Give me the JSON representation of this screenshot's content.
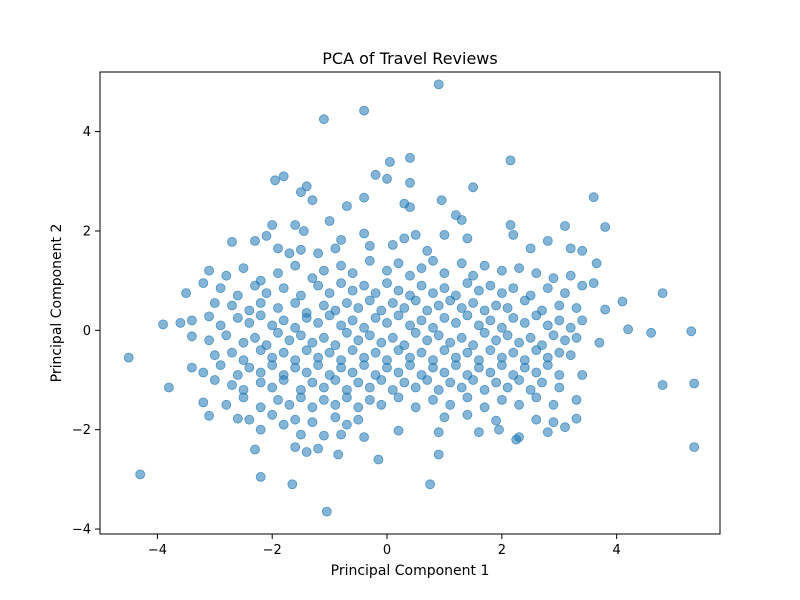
{
  "chart_data": {
    "type": "scatter",
    "title": "PCA of Travel Reviews",
    "xlabel": "Principal Component 1",
    "ylabel": "Principal Component 2",
    "xlim": [
      -5.0,
      5.8
    ],
    "ylim": [
      -4.1,
      5.2
    ],
    "xticks": [
      -4,
      -2,
      0,
      2,
      4
    ],
    "yticks": [
      -4,
      -2,
      0,
      2,
      4
    ],
    "grid": false,
    "legend": "none",
    "point_color": "#1f77b4",
    "point_alpha": 0.55,
    "points": [
      [
        0.9,
        4.95
      ],
      [
        -1.1,
        4.25
      ],
      [
        -0.4,
        4.42
      ],
      [
        0.4,
        3.47
      ],
      [
        2.15,
        3.42
      ],
      [
        0.05,
        3.39
      ],
      [
        -0.2,
        3.13
      ],
      [
        -1.8,
        3.1
      ],
      [
        -1.95,
        3.02
      ],
      [
        0.0,
        3.05
      ],
      [
        0.4,
        2.97
      ],
      [
        1.5,
        2.88
      ],
      [
        -1.4,
        2.9
      ],
      [
        -1.5,
        2.78
      ],
      [
        -1.3,
        2.62
      ],
      [
        0.95,
        2.62
      ],
      [
        3.6,
        2.68
      ],
      [
        -0.4,
        2.67
      ],
      [
        -0.7,
        2.5
      ],
      [
        0.3,
        2.55
      ],
      [
        0.4,
        2.48
      ],
      [
        1.2,
        2.32
      ],
      [
        -1.0,
        2.2
      ],
      [
        -1.6,
        2.12
      ],
      [
        -2.0,
        2.12
      ],
      [
        -1.45,
        2.0
      ],
      [
        1.3,
        2.22
      ],
      [
        2.15,
        2.12
      ],
      [
        3.1,
        2.1
      ],
      [
        3.8,
        2.08
      ],
      [
        -2.3,
        1.8
      ],
      [
        -2.7,
        1.78
      ],
      [
        -2.1,
        1.9
      ],
      [
        -1.9,
        1.65
      ],
      [
        -1.7,
        1.55
      ],
      [
        -1.5,
        1.62
      ],
      [
        -1.2,
        1.55
      ],
      [
        -0.9,
        1.65
      ],
      [
        -0.8,
        1.82
      ],
      [
        -0.4,
        1.95
      ],
      [
        -0.3,
        1.7
      ],
      [
        0.1,
        1.72
      ],
      [
        0.3,
        1.85
      ],
      [
        0.5,
        1.92
      ],
      [
        0.7,
        1.6
      ],
      [
        1.0,
        1.92
      ],
      [
        1.4,
        1.85
      ],
      [
        2.2,
        1.92
      ],
      [
        2.5,
        1.65
      ],
      [
        2.8,
        1.8
      ],
      [
        3.2,
        1.65
      ],
      [
        3.4,
        1.6
      ],
      [
        3.65,
        1.35
      ],
      [
        -3.1,
        1.2
      ],
      [
        -2.8,
        1.1
      ],
      [
        -2.5,
        1.25
      ],
      [
        -2.2,
        1.0
      ],
      [
        -1.9,
        1.15
      ],
      [
        -1.6,
        1.3
      ],
      [
        -1.3,
        1.05
      ],
      [
        -1.1,
        1.2
      ],
      [
        -0.8,
        1.3
      ],
      [
        -0.6,
        1.15
      ],
      [
        -0.3,
        1.4
      ],
      [
        0.0,
        1.2
      ],
      [
        0.2,
        1.35
      ],
      [
        0.4,
        1.1
      ],
      [
        0.6,
        1.25
      ],
      [
        0.8,
        1.4
      ],
      [
        1.0,
        1.15
      ],
      [
        1.3,
        1.35
      ],
      [
        1.5,
        1.1
      ],
      [
        1.7,
        1.3
      ],
      [
        2.0,
        1.2
      ],
      [
        2.3,
        1.25
      ],
      [
        2.6,
        1.15
      ],
      [
        2.9,
        1.05
      ],
      [
        3.2,
        1.1
      ],
      [
        -3.5,
        0.75
      ],
      [
        -3.2,
        0.95
      ],
      [
        -2.9,
        0.85
      ],
      [
        -2.6,
        0.7
      ],
      [
        -2.3,
        0.9
      ],
      [
        -2.1,
        0.75
      ],
      [
        -1.8,
        0.85
      ],
      [
        -1.5,
        0.7
      ],
      [
        -1.2,
        0.9
      ],
      [
        -1.0,
        0.75
      ],
      [
        -0.8,
        0.95
      ],
      [
        -0.6,
        0.8
      ],
      [
        -0.4,
        0.9
      ],
      [
        -0.2,
        0.75
      ],
      [
        0.0,
        0.95
      ],
      [
        0.2,
        0.8
      ],
      [
        0.4,
        0.7
      ],
      [
        0.6,
        0.9
      ],
      [
        0.8,
        0.75
      ],
      [
        1.0,
        0.85
      ],
      [
        1.2,
        0.7
      ],
      [
        1.4,
        0.95
      ],
      [
        1.6,
        0.8
      ],
      [
        1.8,
        0.9
      ],
      [
        2.0,
        0.75
      ],
      [
        2.2,
        0.85
      ],
      [
        2.5,
        0.7
      ],
      [
        2.8,
        0.85
      ],
      [
        3.1,
        0.75
      ],
      [
        3.4,
        0.9
      ],
      [
        3.6,
        0.95
      ],
      [
        4.8,
        0.75
      ],
      [
        -3.0,
        0.55
      ],
      [
        -2.7,
        0.5
      ],
      [
        -2.4,
        0.4
      ],
      [
        -2.2,
        0.55
      ],
      [
        -1.9,
        0.45
      ],
      [
        -1.6,
        0.55
      ],
      [
        -1.4,
        0.35
      ],
      [
        -1.1,
        0.5
      ],
      [
        -0.9,
        0.4
      ],
      [
        -0.7,
        0.55
      ],
      [
        -0.5,
        0.45
      ],
      [
        -0.3,
        0.6
      ],
      [
        -0.1,
        0.4
      ],
      [
        0.1,
        0.55
      ],
      [
        0.3,
        0.45
      ],
      [
        0.5,
        0.6
      ],
      [
        0.7,
        0.4
      ],
      [
        0.9,
        0.5
      ],
      [
        1.1,
        0.6
      ],
      [
        1.3,
        0.45
      ],
      [
        1.5,
        0.55
      ],
      [
        1.7,
        0.4
      ],
      [
        1.9,
        0.5
      ],
      [
        2.1,
        0.45
      ],
      [
        2.4,
        0.6
      ],
      [
        2.7,
        0.4
      ],
      [
        3.0,
        0.5
      ],
      [
        3.3,
        0.45
      ],
      [
        4.1,
        0.58
      ],
      [
        3.8,
        0.42
      ],
      [
        -3.9,
        0.12
      ],
      [
        -3.6,
        0.15
      ],
      [
        -3.4,
        0.2
      ],
      [
        -3.1,
        0.28
      ],
      [
        -2.9,
        0.1
      ],
      [
        -2.6,
        0.25
      ],
      [
        -2.4,
        0.15
      ],
      [
        -2.2,
        0.3
      ],
      [
        -2.0,
        0.1
      ],
      [
        -1.8,
        0.2
      ],
      [
        -1.6,
        0.05
      ],
      [
        -1.4,
        0.25
      ],
      [
        -1.2,
        0.15
      ],
      [
        -1.0,
        0.3
      ],
      [
        -0.8,
        0.1
      ],
      [
        -0.6,
        0.2
      ],
      [
        -0.4,
        0.05
      ],
      [
        -0.2,
        0.25
      ],
      [
        0.0,
        0.15
      ],
      [
        0.2,
        0.3
      ],
      [
        0.4,
        0.1
      ],
      [
        0.6,
        0.2
      ],
      [
        0.8,
        0.05
      ],
      [
        1.0,
        0.25
      ],
      [
        1.2,
        0.15
      ],
      [
        1.4,
        0.3
      ],
      [
        1.6,
        0.1
      ],
      [
        1.8,
        0.2
      ],
      [
        2.0,
        0.05
      ],
      [
        2.2,
        0.25
      ],
      [
        2.4,
        0.15
      ],
      [
        2.6,
        0.3
      ],
      [
        2.8,
        0.1
      ],
      [
        3.0,
        0.2
      ],
      [
        3.2,
        0.05
      ],
      [
        3.4,
        0.2
      ],
      [
        4.2,
        0.02
      ],
      [
        4.6,
        -0.05
      ],
      [
        5.3,
        -0.02
      ],
      [
        -3.4,
        -0.12
      ],
      [
        -3.1,
        -0.2
      ],
      [
        -2.8,
        -0.1
      ],
      [
        -2.5,
        -0.25
      ],
      [
        -2.3,
        -0.15
      ],
      [
        -2.1,
        -0.3
      ],
      [
        -1.9,
        -0.05
      ],
      [
        -1.7,
        -0.2
      ],
      [
        -1.5,
        -0.1
      ],
      [
        -1.3,
        -0.25
      ],
      [
        -1.1,
        -0.15
      ],
      [
        -0.9,
        -0.3
      ],
      [
        -0.7,
        -0.05
      ],
      [
        -0.5,
        -0.2
      ],
      [
        -0.3,
        -0.1
      ],
      [
        -0.1,
        -0.25
      ],
      [
        0.1,
        -0.15
      ],
      [
        0.3,
        -0.3
      ],
      [
        0.5,
        -0.05
      ],
      [
        0.7,
        -0.2
      ],
      [
        0.9,
        -0.1
      ],
      [
        1.1,
        -0.25
      ],
      [
        1.3,
        -0.15
      ],
      [
        1.5,
        -0.3
      ],
      [
        1.7,
        -0.05
      ],
      [
        1.9,
        -0.2
      ],
      [
        2.1,
        -0.1
      ],
      [
        2.3,
        -0.25
      ],
      [
        2.5,
        -0.15
      ],
      [
        2.7,
        -0.3
      ],
      [
        2.9,
        -0.1
      ],
      [
        3.1,
        -0.2
      ],
      [
        3.3,
        -0.15
      ],
      [
        3.7,
        -0.25
      ],
      [
        -3.0,
        -0.5
      ],
      [
        -2.7,
        -0.45
      ],
      [
        -2.5,
        -0.6
      ],
      [
        -2.2,
        -0.4
      ],
      [
        -2.0,
        -0.55
      ],
      [
        -1.8,
        -0.45
      ],
      [
        -1.6,
        -0.6
      ],
      [
        -1.4,
        -0.4
      ],
      [
        -1.2,
        -0.55
      ],
      [
        -1.0,
        -0.45
      ],
      [
        -0.8,
        -0.6
      ],
      [
        -0.6,
        -0.4
      ],
      [
        -0.4,
        -0.55
      ],
      [
        -0.2,
        -0.45
      ],
      [
        0.0,
        -0.6
      ],
      [
        0.2,
        -0.4
      ],
      [
        0.4,
        -0.55
      ],
      [
        0.6,
        -0.45
      ],
      [
        0.8,
        -0.6
      ],
      [
        1.0,
        -0.4
      ],
      [
        1.2,
        -0.55
      ],
      [
        1.4,
        -0.45
      ],
      [
        1.6,
        -0.6
      ],
      [
        1.8,
        -0.4
      ],
      [
        2.0,
        -0.55
      ],
      [
        2.2,
        -0.45
      ],
      [
        2.4,
        -0.6
      ],
      [
        2.6,
        -0.4
      ],
      [
        2.8,
        -0.55
      ],
      [
        3.0,
        -0.45
      ],
      [
        3.2,
        -0.5
      ],
      [
        -4.5,
        -0.55
      ],
      [
        -3.4,
        -0.75
      ],
      [
        -3.2,
        -0.85
      ],
      [
        -2.9,
        -0.7
      ],
      [
        -2.6,
        -0.9
      ],
      [
        -2.4,
        -0.75
      ],
      [
        -2.2,
        -0.85
      ],
      [
        -2.0,
        -0.7
      ],
      [
        -1.8,
        -0.9
      ],
      [
        -1.6,
        -0.75
      ],
      [
        -1.4,
        -0.85
      ],
      [
        -1.2,
        -0.7
      ],
      [
        -1.0,
        -0.9
      ],
      [
        -0.8,
        -0.75
      ],
      [
        -0.6,
        -0.85
      ],
      [
        -0.4,
        -0.7
      ],
      [
        -0.2,
        -0.9
      ],
      [
        0.0,
        -0.75
      ],
      [
        0.2,
        -0.85
      ],
      [
        0.4,
        -0.7
      ],
      [
        0.6,
        -0.9
      ],
      [
        0.8,
        -0.75
      ],
      [
        1.0,
        -0.85
      ],
      [
        1.2,
        -0.7
      ],
      [
        1.4,
        -0.9
      ],
      [
        1.6,
        -0.75
      ],
      [
        1.8,
        -0.85
      ],
      [
        2.0,
        -0.7
      ],
      [
        2.2,
        -0.9
      ],
      [
        2.4,
        -0.75
      ],
      [
        2.6,
        -0.85
      ],
      [
        2.8,
        -0.7
      ],
      [
        3.0,
        -0.9
      ],
      [
        -3.8,
        -1.15
      ],
      [
        -3.0,
        -1.0
      ],
      [
        -2.7,
        -1.1
      ],
      [
        -2.5,
        -1.2
      ],
      [
        -2.2,
        -1.05
      ],
      [
        -2.0,
        -1.15
      ],
      [
        -1.8,
        -1.0
      ],
      [
        -1.5,
        -1.2
      ],
      [
        -1.3,
        -1.05
      ],
      [
        -1.1,
        -1.15
      ],
      [
        -0.9,
        -1.0
      ],
      [
        -0.7,
        -1.2
      ],
      [
        -0.5,
        -1.05
      ],
      [
        -0.3,
        -1.15
      ],
      [
        -0.1,
        -1.0
      ],
      [
        0.1,
        -1.2
      ],
      [
        0.3,
        -1.05
      ],
      [
        0.5,
        -1.15
      ],
      [
        0.7,
        -1.0
      ],
      [
        0.9,
        -1.2
      ],
      [
        1.1,
        -1.05
      ],
      [
        1.3,
        -1.15
      ],
      [
        1.5,
        -1.0
      ],
      [
        1.7,
        -1.2
      ],
      [
        1.9,
        -1.05
      ],
      [
        2.1,
        -1.15
      ],
      [
        2.3,
        -1.0
      ],
      [
        2.5,
        -1.2
      ],
      [
        2.7,
        -1.05
      ],
      [
        3.0,
        -1.15
      ],
      [
        3.4,
        -0.9
      ],
      [
        4.8,
        -1.1
      ],
      [
        5.35,
        -1.07
      ],
      [
        -3.2,
        -1.45
      ],
      [
        -2.8,
        -1.5
      ],
      [
        -2.5,
        -1.35
      ],
      [
        -2.2,
        -1.55
      ],
      [
        -1.9,
        -1.4
      ],
      [
        -1.7,
        -1.5
      ],
      [
        -1.5,
        -1.35
      ],
      [
        -1.3,
        -1.55
      ],
      [
        -1.1,
        -1.4
      ],
      [
        -0.9,
        -1.5
      ],
      [
        -0.7,
        -1.35
      ],
      [
        -0.5,
        -1.55
      ],
      [
        -0.3,
        -1.4
      ],
      [
        -0.1,
        -1.5
      ],
      [
        0.2,
        -1.35
      ],
      [
        0.5,
        -1.55
      ],
      [
        0.8,
        -1.4
      ],
      [
        1.1,
        -1.5
      ],
      [
        1.4,
        -1.35
      ],
      [
        1.7,
        -1.55
      ],
      [
        2.0,
        -1.4
      ],
      [
        2.3,
        -1.5
      ],
      [
        2.6,
        -1.35
      ],
      [
        2.9,
        -1.5
      ],
      [
        3.3,
        -1.4
      ],
      [
        -3.1,
        -1.72
      ],
      [
        -2.6,
        -1.78
      ],
      [
        -2.4,
        -1.8
      ],
      [
        -2.0,
        -1.7
      ],
      [
        -1.8,
        -1.9
      ],
      [
        -1.6,
        -1.8
      ],
      [
        -1.3,
        -1.85
      ],
      [
        -0.9,
        -1.75
      ],
      [
        -0.7,
        -1.9
      ],
      [
        -0.5,
        -1.8
      ],
      [
        1.0,
        -1.75
      ],
      [
        1.4,
        -1.7
      ],
      [
        1.9,
        -1.82
      ],
      [
        2.6,
        -1.8
      ],
      [
        2.9,
        -1.85
      ],
      [
        3.1,
        -1.95
      ],
      [
        3.3,
        -1.78
      ],
      [
        -2.2,
        -2.0
      ],
      [
        -1.5,
        -2.1
      ],
      [
        -1.1,
        -2.12
      ],
      [
        -0.8,
        -2.1
      ],
      [
        -0.4,
        -2.15
      ],
      [
        0.2,
        -2.02
      ],
      [
        0.9,
        -2.05
      ],
      [
        1.6,
        -2.05
      ],
      [
        1.95,
        -2.0
      ],
      [
        2.3,
        -2.15
      ],
      [
        2.8,
        -2.05
      ],
      [
        -2.3,
        -2.4
      ],
      [
        -1.6,
        -2.35
      ],
      [
        -1.4,
        -2.45
      ],
      [
        -1.2,
        -2.38
      ],
      [
        -0.85,
        -2.5
      ],
      [
        -0.15,
        -2.6
      ],
      [
        0.9,
        -2.5
      ],
      [
        2.25,
        -2.2
      ],
      [
        5.35,
        -2.35
      ],
      [
        -4.3,
        -2.9
      ],
      [
        -2.2,
        -2.95
      ],
      [
        -1.65,
        -3.1
      ],
      [
        0.75,
        -3.1
      ],
      [
        -1.05,
        -3.65
      ]
    ]
  }
}
